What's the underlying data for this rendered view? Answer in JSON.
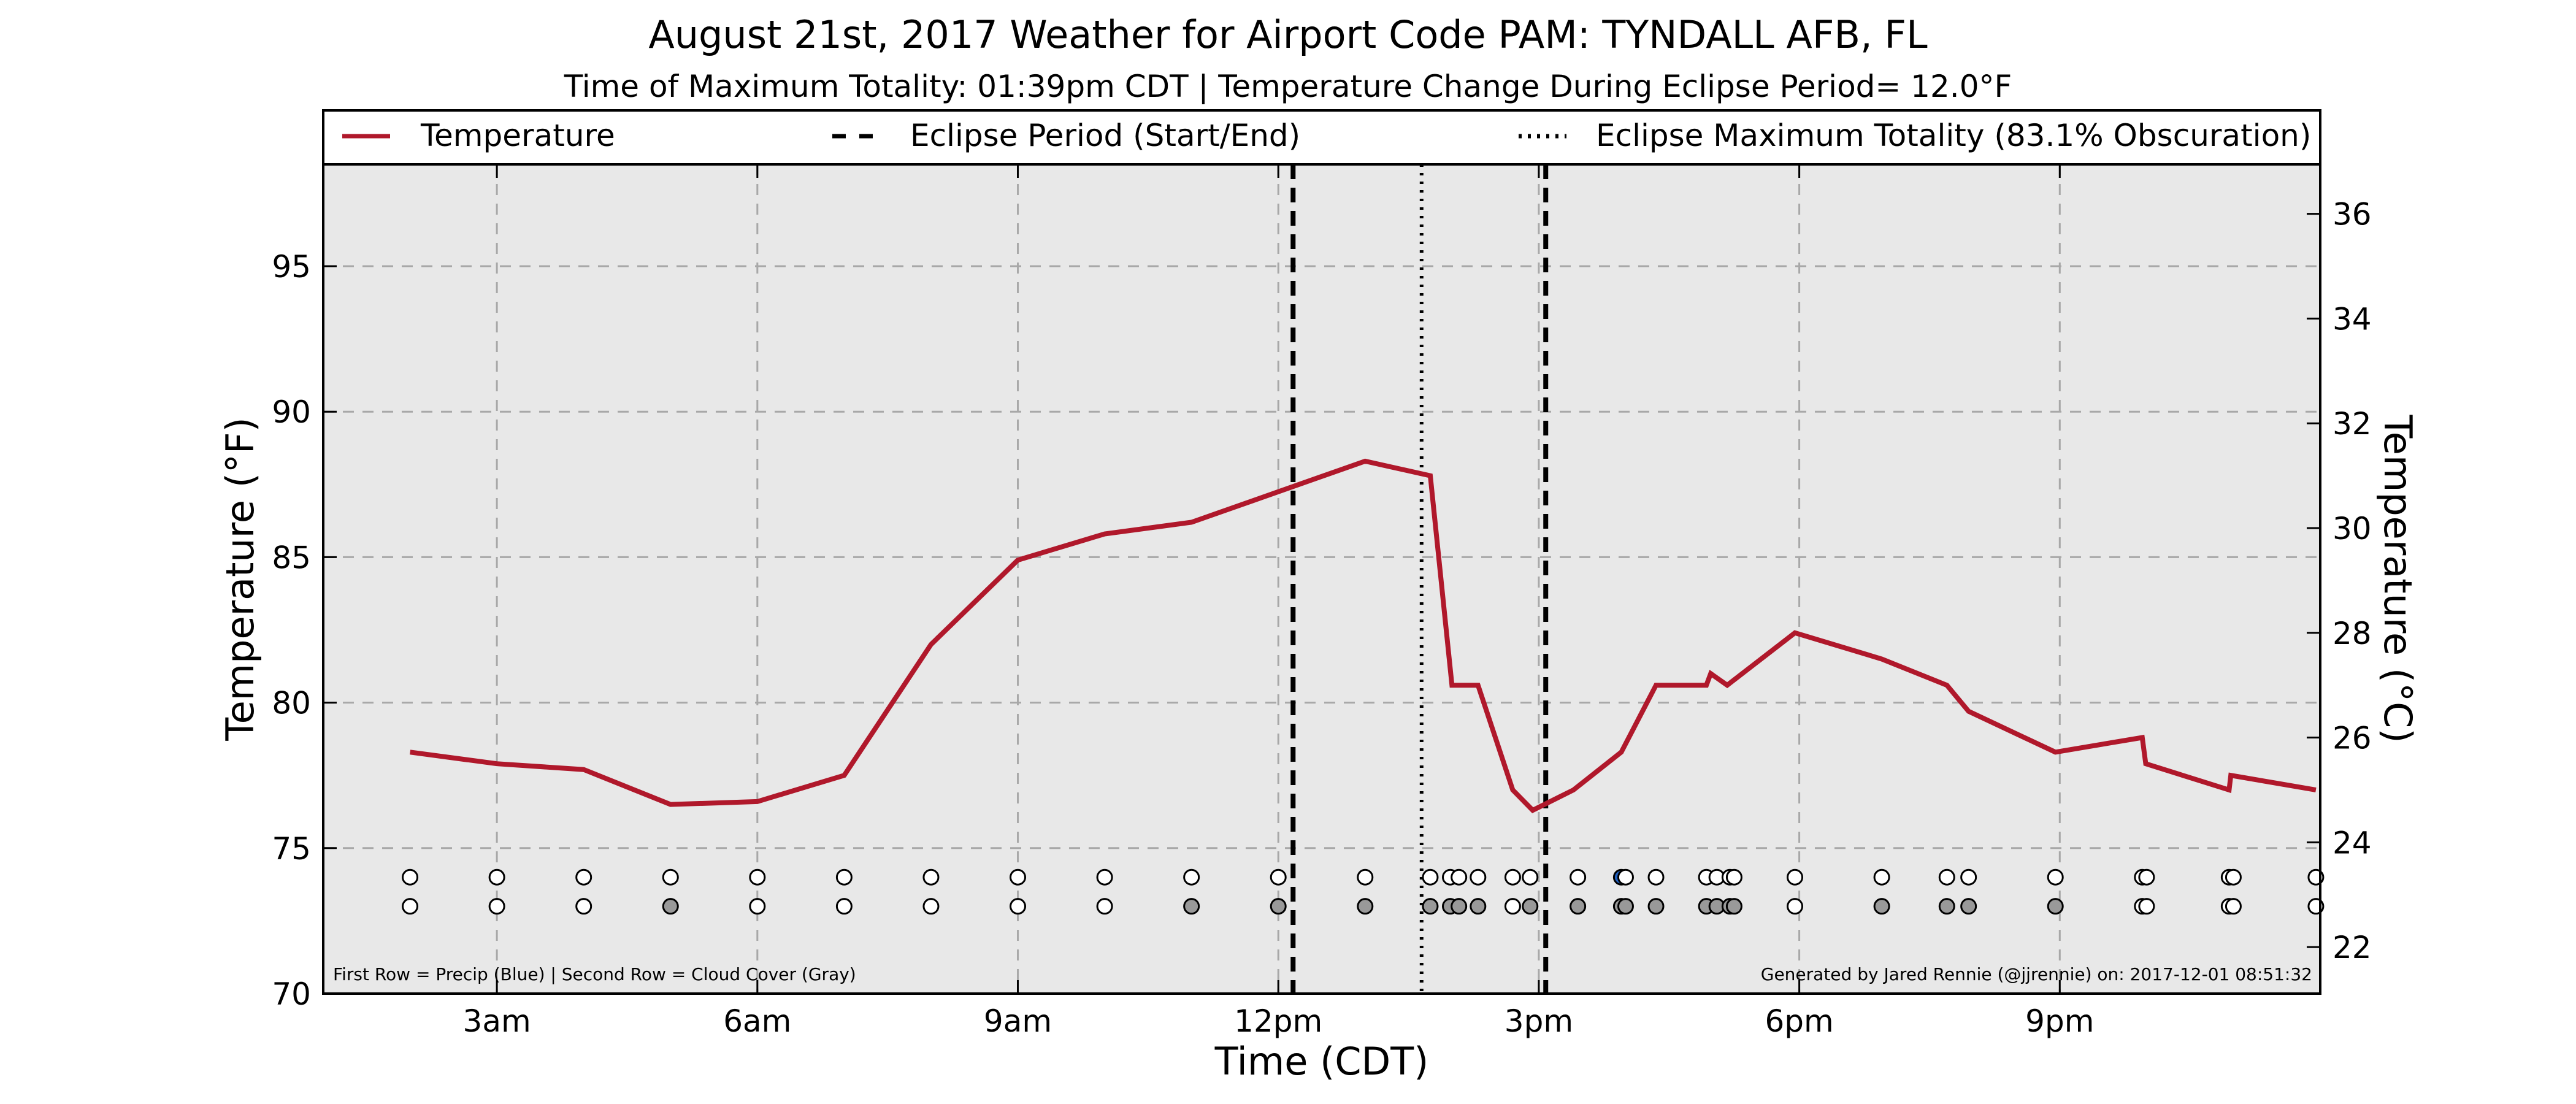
{
  "chart_data": {
    "type": "line",
    "title": "August 21st, 2017 Weather for Airport Code PAM: TYNDALL AFB, FL",
    "subtitle": "Time of Maximum Totality: 01:39pm CDT | Temperature Change During Eclipse Period= 12.0°F",
    "xlabel": "Time (CDT)",
    "ylabel": "Temperature (°F)",
    "ylabel_right": "Temperature (°C)",
    "xlim": [
      1.0,
      24.0
    ],
    "ylim": [
      70,
      98.5
    ],
    "x_ticks": [
      {
        "value": 3,
        "label": "3am"
      },
      {
        "value": 6,
        "label": "6am"
      },
      {
        "value": 9,
        "label": "9am"
      },
      {
        "value": 12,
        "label": "12pm"
      },
      {
        "value": 15,
        "label": "3pm"
      },
      {
        "value": 18,
        "label": "6pm"
      },
      {
        "value": 21,
        "label": "9pm"
      }
    ],
    "y_ticks": [
      70,
      75,
      80,
      85,
      90,
      95
    ],
    "y_ticks_right": [
      22,
      24,
      26,
      28,
      30,
      32,
      34,
      36
    ],
    "grid": true,
    "legend_position": "top",
    "legend": [
      {
        "label": "Temperature",
        "style": "solid"
      },
      {
        "label": "Eclipse Period (Start/End)",
        "style": "dashed"
      },
      {
        "label": "Eclipse Maximum Totality (83.1% Obscuration)",
        "style": "dotted"
      }
    ],
    "series": [
      {
        "name": "Temperature",
        "color": "#b0182b",
        "x": [
          2.0,
          3.0,
          4.0,
          5.0,
          6.0,
          7.0,
          8.0,
          9.0,
          10.0,
          11.0,
          13.0,
          13.75,
          14.0,
          14.3,
          14.7,
          14.93,
          15.4,
          15.95,
          16.35,
          16.93,
          16.98,
          17.17,
          17.95,
          18.95,
          19.7,
          19.95,
          20.95,
          21.95,
          21.99,
          22.95,
          22.97,
          23.95
        ],
        "y": [
          78.3,
          77.9,
          77.7,
          76.5,
          76.6,
          77.5,
          82.0,
          84.9,
          85.8,
          86.2,
          88.3,
          87.8,
          80.6,
          80.6,
          77.0,
          76.3,
          77.0,
          78.3,
          80.6,
          80.6,
          81.0,
          80.6,
          82.4,
          81.5,
          80.6,
          79.7,
          78.3,
          78.8,
          77.9,
          77.0,
          77.5,
          77.0
        ]
      }
    ],
    "eclipse_start": 12.17,
    "eclipse_end": 15.08,
    "eclipse_max_totality": 13.65,
    "obs_rows": {
      "precip_row_y": 74,
      "cloud_row_y": 73,
      "precip": [
        {
          "x": 2.0,
          "color": "#ffffff"
        },
        {
          "x": 3.0,
          "color": "#ffffff"
        },
        {
          "x": 4.0,
          "color": "#ffffff"
        },
        {
          "x": 5.0,
          "color": "#ffffff"
        },
        {
          "x": 6.0,
          "color": "#ffffff"
        },
        {
          "x": 7.0,
          "color": "#ffffff"
        },
        {
          "x": 8.0,
          "color": "#ffffff"
        },
        {
          "x": 9.0,
          "color": "#ffffff"
        },
        {
          "x": 10.0,
          "color": "#ffffff"
        },
        {
          "x": 11.0,
          "color": "#ffffff"
        },
        {
          "x": 12.0,
          "color": "#ffffff"
        },
        {
          "x": 13.0,
          "color": "#ffffff"
        },
        {
          "x": 13.75,
          "color": "#ffffff"
        },
        {
          "x": 13.98,
          "color": "#ffffff"
        },
        {
          "x": 14.08,
          "color": "#ffffff"
        },
        {
          "x": 14.3,
          "color": "#ffffff"
        },
        {
          "x": 14.7,
          "color": "#ffffff"
        },
        {
          "x": 14.9,
          "color": "#ffffff"
        },
        {
          "x": 15.45,
          "color": "#ffffff"
        },
        {
          "x": 15.95,
          "color": "#1f5fbf"
        },
        {
          "x": 16.0,
          "color": "#ffffff"
        },
        {
          "x": 16.35,
          "color": "#ffffff"
        },
        {
          "x": 16.93,
          "color": "#ffffff"
        },
        {
          "x": 17.05,
          "color": "#ffffff"
        },
        {
          "x": 17.2,
          "color": "#ffffff"
        },
        {
          "x": 17.25,
          "color": "#ffffff"
        },
        {
          "x": 17.95,
          "color": "#ffffff"
        },
        {
          "x": 18.95,
          "color": "#ffffff"
        },
        {
          "x": 19.7,
          "color": "#ffffff"
        },
        {
          "x": 19.95,
          "color": "#ffffff"
        },
        {
          "x": 20.95,
          "color": "#ffffff"
        },
        {
          "x": 21.95,
          "color": "#ffffff"
        },
        {
          "x": 22.0,
          "color": "#ffffff"
        },
        {
          "x": 22.95,
          "color": "#ffffff"
        },
        {
          "x": 23.0,
          "color": "#ffffff"
        },
        {
          "x": 23.95,
          "color": "#ffffff"
        }
      ],
      "cloud": [
        {
          "x": 2.0,
          "color": "#ffffff"
        },
        {
          "x": 3.0,
          "color": "#ffffff"
        },
        {
          "x": 4.0,
          "color": "#ffffff"
        },
        {
          "x": 5.0,
          "color": "#999999"
        },
        {
          "x": 6.0,
          "color": "#ffffff"
        },
        {
          "x": 7.0,
          "color": "#ffffff"
        },
        {
          "x": 8.0,
          "color": "#ffffff"
        },
        {
          "x": 9.0,
          "color": "#ffffff"
        },
        {
          "x": 10.0,
          "color": "#ffffff"
        },
        {
          "x": 11.0,
          "color": "#999999"
        },
        {
          "x": 12.0,
          "color": "#999999"
        },
        {
          "x": 13.0,
          "color": "#999999"
        },
        {
          "x": 13.75,
          "color": "#999999"
        },
        {
          "x": 13.98,
          "color": "#999999"
        },
        {
          "x": 14.08,
          "color": "#999999"
        },
        {
          "x": 14.3,
          "color": "#999999"
        },
        {
          "x": 14.7,
          "color": "#ffffff"
        },
        {
          "x": 14.9,
          "color": "#999999"
        },
        {
          "x": 15.45,
          "color": "#999999"
        },
        {
          "x": 15.95,
          "color": "#999999"
        },
        {
          "x": 16.0,
          "color": "#999999"
        },
        {
          "x": 16.35,
          "color": "#999999"
        },
        {
          "x": 16.93,
          "color": "#999999"
        },
        {
          "x": 17.05,
          "color": "#999999"
        },
        {
          "x": 17.2,
          "color": "#999999"
        },
        {
          "x": 17.25,
          "color": "#999999"
        },
        {
          "x": 17.95,
          "color": "#ffffff"
        },
        {
          "x": 18.95,
          "color": "#999999"
        },
        {
          "x": 19.7,
          "color": "#999999"
        },
        {
          "x": 19.95,
          "color": "#999999"
        },
        {
          "x": 20.95,
          "color": "#999999"
        },
        {
          "x": 21.95,
          "color": "#ffffff"
        },
        {
          "x": 22.0,
          "color": "#ffffff"
        },
        {
          "x": 22.95,
          "color": "#ffffff"
        },
        {
          "x": 23.0,
          "color": "#ffffff"
        },
        {
          "x": 23.95,
          "color": "#ffffff"
        }
      ]
    },
    "footnote_left": "First Row = Precip (Blue) | Second Row = Cloud Cover (Gray)",
    "footnote_right": "Generated by Jared Rennie (@jjrennie) on: 2017-12-01 08:51:32",
    "colors": {
      "temperature": "#b0182b",
      "plot_background": "#e8e8e8",
      "grid": "#a8a8a8",
      "eclipse_lines": "#000000"
    }
  }
}
